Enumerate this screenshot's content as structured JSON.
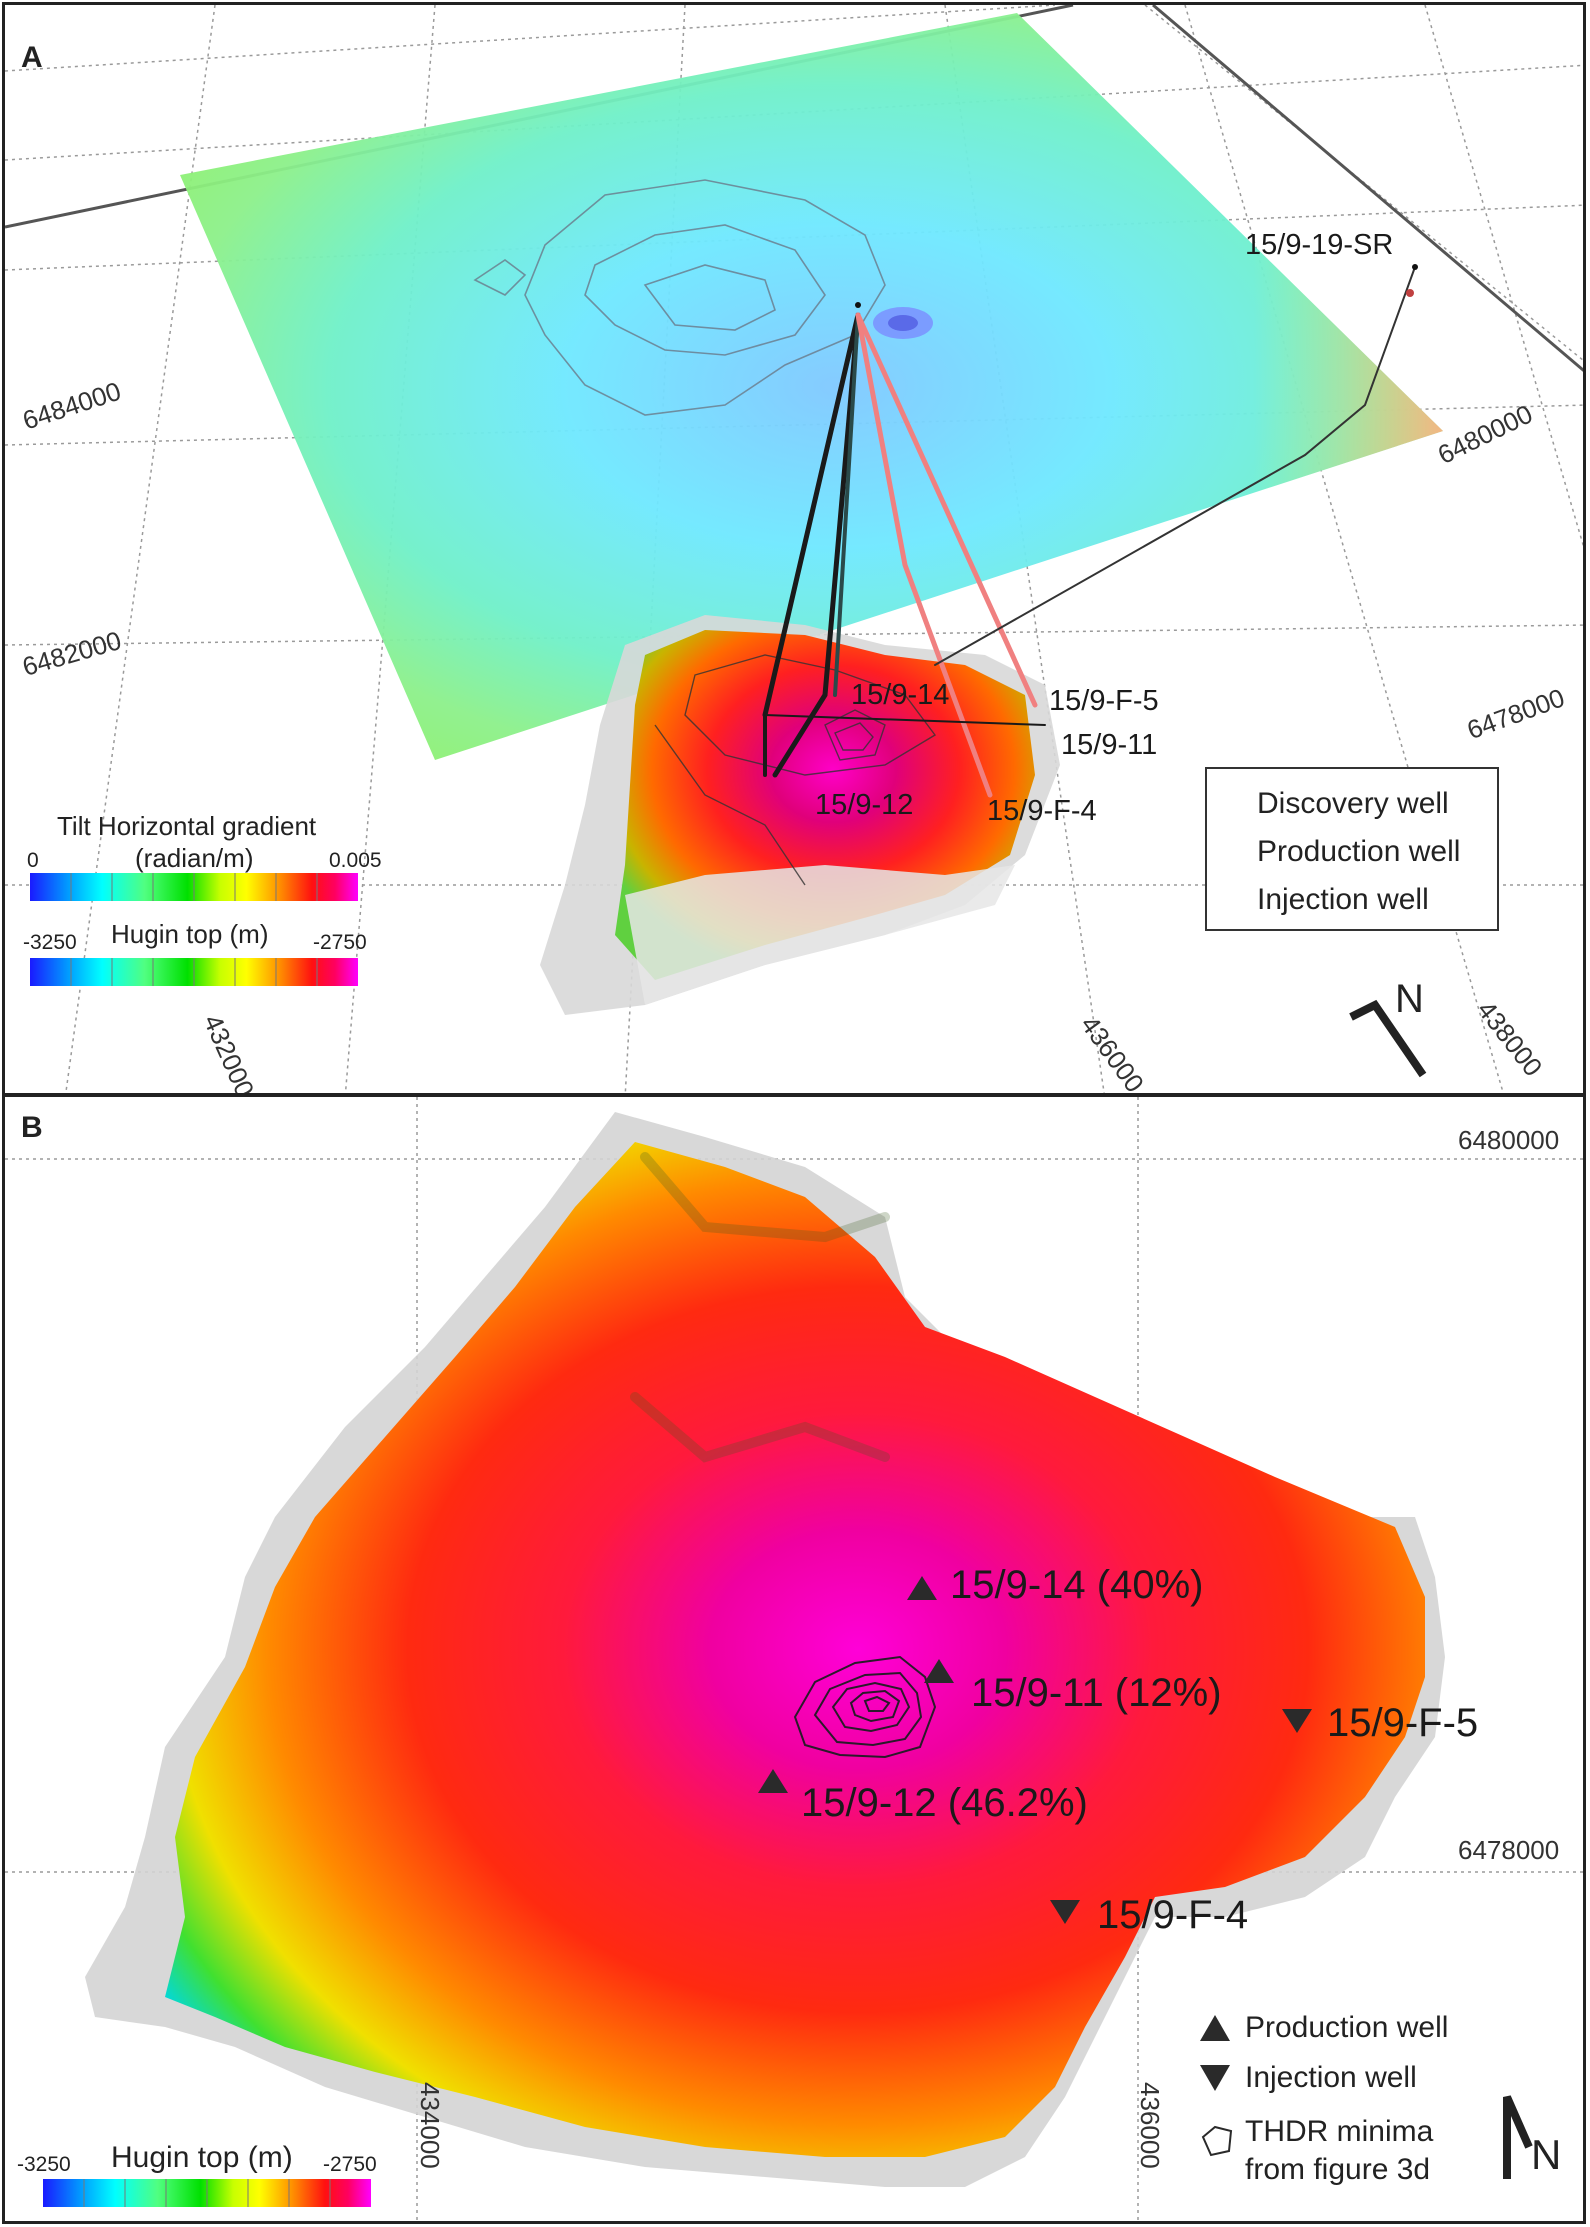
{
  "panel_a": {
    "letter": "A",
    "grid_labels": {
      "north_6484000": "6484000",
      "north_6482000": "6482000",
      "east_432000": "432000",
      "east_436000": "436000",
      "east_438000": "438000",
      "north_6480000": "6480000",
      "north_6478000": "6478000"
    },
    "wells": {
      "sr": "15/9-19-SR",
      "w14": "15/9-14",
      "f5": "15/9-F-5",
      "w11": "15/9-11",
      "w12": "15/9-12",
      "f4": "15/9-F-4"
    },
    "colorbar_tilt": {
      "title_line1": "Tilt Horizontal gradient",
      "title_line2": "(radian/m)",
      "min": "0",
      "max": "0.005"
    },
    "colorbar_hugin": {
      "title": "Hugin top (m)",
      "min": "-3250",
      "max": "-2750"
    },
    "legend": {
      "discovery": "Discovery well",
      "production": "Production well",
      "injection": "Injection well"
    },
    "north_label": "N"
  },
  "panel_b": {
    "letter": "B",
    "grid_labels": {
      "north_6480000": "6480000",
      "north_6478000": "6478000",
      "east_434000": "434000",
      "east_436000": "436000"
    },
    "wells": {
      "w14": "15/9-14 (40%)",
      "w11": "15/9-11 (12%)",
      "w12": "15/9-12 (46.2%)",
      "f5": "15/9-F-5",
      "f4": "15/9-F-4"
    },
    "legend": {
      "production": "Production well",
      "injection": "Injection well",
      "thdr_line1": "THDR minima",
      "thdr_line2": "from figure 3d"
    },
    "colorbar_hugin": {
      "title": "Hugin top (m)",
      "min": "-3250",
      "max": "-2750"
    },
    "north_label": "N"
  },
  "colors": {
    "production_well": "#1a1a1a",
    "injection_well": "#f08080",
    "grid": "#9a9a9a",
    "border": "#222222"
  },
  "colormap": [
    "#1a1aff",
    "#00b4ff",
    "#00ffff",
    "#7dff50",
    "#00e000",
    "#ffff00",
    "#ffa000",
    "#ff3000",
    "#ff0040",
    "#ff00ff"
  ]
}
